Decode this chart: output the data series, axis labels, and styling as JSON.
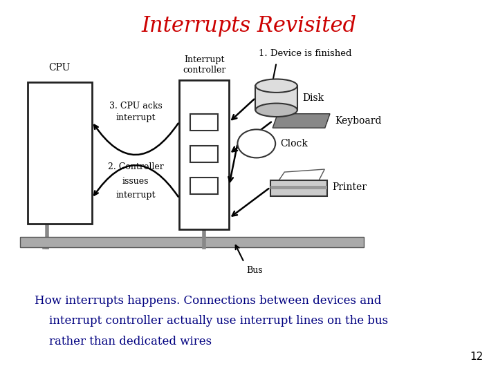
{
  "title": "Interrupts Revisited",
  "title_color": "#cc0000",
  "title_fontsize": 22,
  "body_text_line1": "How interrupts happens. Connections between devices and",
  "body_text_line2": "    interrupt controller actually use interrupt lines on the bus",
  "body_text_line3": "    rather than dedicated wires",
  "body_text_color": "#000080",
  "body_text_fontsize": 12,
  "page_number": "12",
  "background_color": "#ffffff",
  "cpu_label": "CPU",
  "ic_label_line1": "Interrupt",
  "ic_label_line2": "controller",
  "step1_label": "1. Device is finished",
  "step2_line1": "2. Controller",
  "step2_line2": "issues",
  "step2_line3": "interrupt",
  "step3_line1": "3. CPU acks",
  "step3_line2": "interrupt",
  "disk_label": "Disk",
  "keyboard_label": "Keyboard",
  "clock_label": "Clock",
  "printer_label": "Printer",
  "bus_label": "Bus"
}
